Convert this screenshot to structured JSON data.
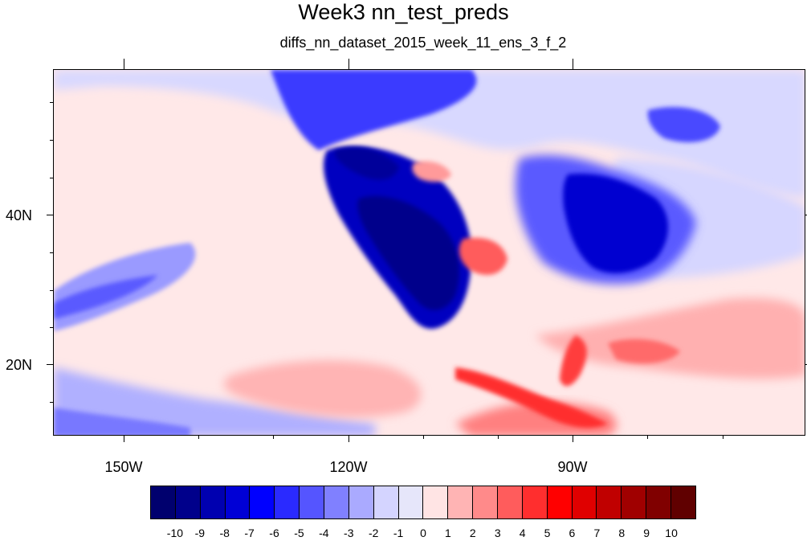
{
  "title": "Week3 nn_test_preds",
  "subtitle": "diffs_nn_dataset_2015_week_11_ens_3_f_2",
  "map": {
    "lat_labels": [
      "40N",
      "20N"
    ],
    "lon_labels": [
      "150W",
      "120W",
      "90W"
    ]
  },
  "colorbar": {
    "colors": [
      "#00006e",
      "#00008b",
      "#0000b0",
      "#0000d6",
      "#0000ff",
      "#2a2aff",
      "#5555ff",
      "#8080ff",
      "#aaaaff",
      "#d4d4ff",
      "#e6e6fa",
      "#ffe4e4",
      "#ffb4b4",
      "#ff8a8a",
      "#ff5c5c",
      "#ff2e2e",
      "#ff0000",
      "#e00000",
      "#c00000",
      "#a00000",
      "#800000",
      "#600000"
    ],
    "labels": [
      "-10",
      "-9",
      "-8",
      "-7",
      "-6",
      "-5",
      "-4",
      "-3",
      "-2",
      "-1",
      "0",
      "1",
      "2",
      "3",
      "4",
      "5",
      "6",
      "7",
      "8",
      "9",
      "10"
    ]
  }
}
